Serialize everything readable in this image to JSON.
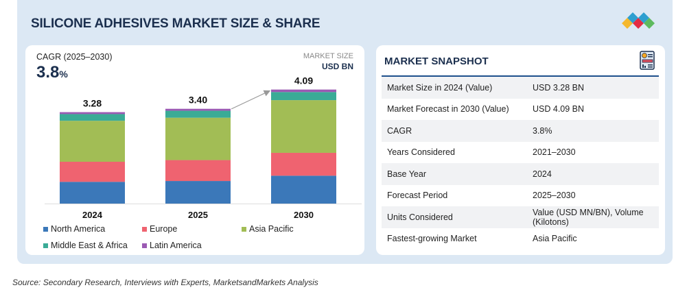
{
  "title": "SILICONE ADHESIVES MARKET SIZE & SHARE",
  "cagr": {
    "label": "CAGR (2025–2030)",
    "value": "3.8",
    "unit": "%"
  },
  "market_size_label": "MARKET SIZE",
  "market_size_unit": "USD BN",
  "chart_data": {
    "type": "bar",
    "stacked": true,
    "categories": [
      "2024",
      "2025",
      "2030"
    ],
    "totals": [
      "3.28",
      "3.40",
      "4.09"
    ],
    "series": [
      {
        "name": "North America",
        "color": "#3b78b9",
        "values": [
          0.78,
          0.81,
          1.0
        ]
      },
      {
        "name": "Europe",
        "color": "#ef6370",
        "values": [
          0.72,
          0.75,
          0.82
        ]
      },
      {
        "name": "Asia Pacific",
        "color": "#a2bd55",
        "values": [
          1.47,
          1.52,
          1.89
        ]
      },
      {
        "name": "Middle East & Africa",
        "color": "#3aab96",
        "values": [
          0.24,
          0.25,
          0.29
        ]
      },
      {
        "name": "Latin America",
        "color": "#9b5ab3",
        "values": [
          0.07,
          0.07,
          0.09
        ]
      }
    ],
    "ylim": [
      0,
      4.1
    ]
  },
  "snapshot": {
    "title": "MARKET SNAPSHOT",
    "rows": [
      {
        "label": "Market Size in 2024 (Value)",
        "value": "USD 3.28 BN"
      },
      {
        "label": "Market Forecast in 2030 (Value)",
        "value": "USD 4.09 BN"
      },
      {
        "label": "CAGR",
        "value": "3.8%"
      },
      {
        "label": "Years Considered",
        "value": "2021–2030"
      },
      {
        "label": "Base Year",
        "value": "2024"
      },
      {
        "label": "Forecast Period",
        "value": "2025–2030"
      },
      {
        "label": "Units Considered",
        "value": "Value (USD MN/BN), Volume (Kilotons)"
      },
      {
        "label": "Fastest-growing Market",
        "value": "Asia Pacific"
      }
    ]
  },
  "source": "Source: Secondary Research, Interviews with Experts, MarketsandMarkets Analysis"
}
